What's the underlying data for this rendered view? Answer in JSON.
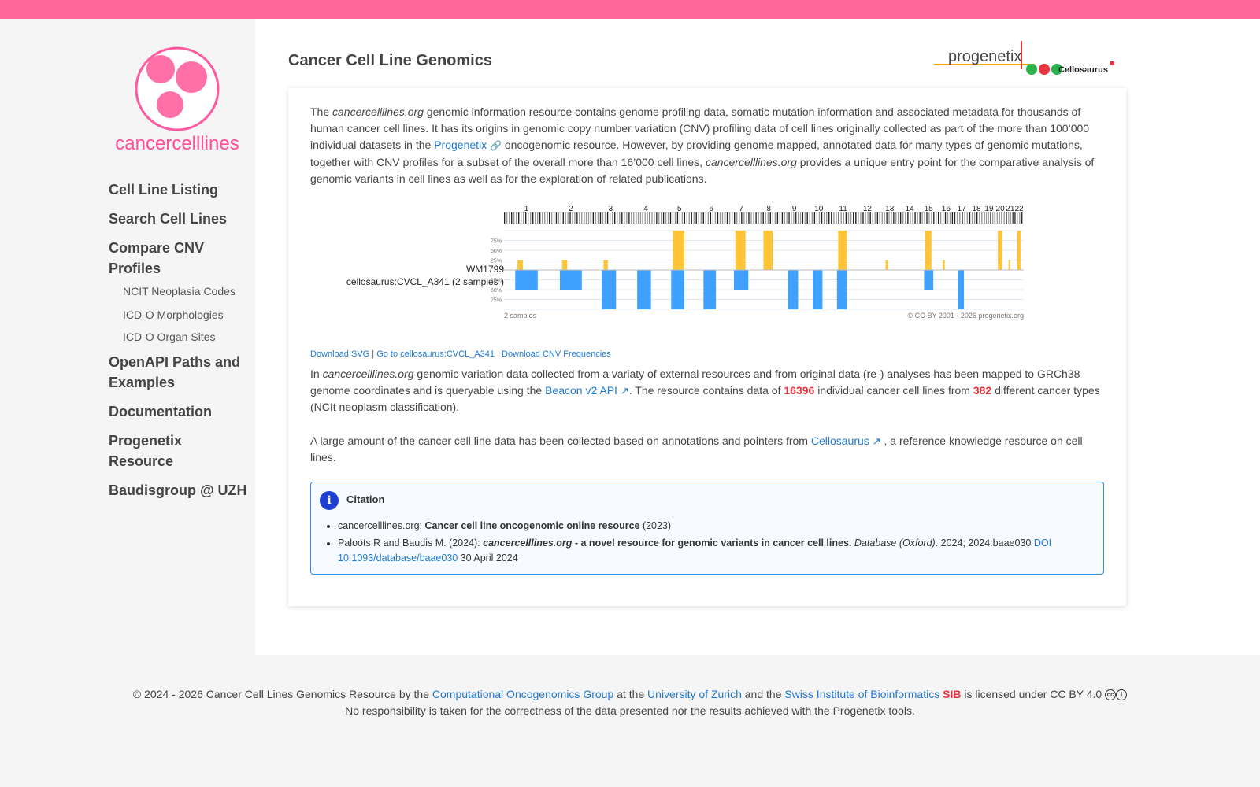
{
  "brand": {
    "logo_text": "cancercelllines",
    "partner_logos": [
      "progenetix",
      "Cellosaurus"
    ]
  },
  "nav": {
    "items": [
      {
        "label": "Cell Line Listing"
      },
      {
        "label": "Search Cell Lines"
      },
      {
        "label": "Compare CNV Profiles"
      },
      {
        "label": "NCIT Neoplasia Codes"
      },
      {
        "label": "ICD-O Morphologies"
      },
      {
        "label": "ICD-O Organ Sites"
      },
      {
        "label": "OpenAPI Paths and Examples"
      },
      {
        "label": "Documentation"
      },
      {
        "label": "Progenetix Resource"
      },
      {
        "label": "Baudisgroup @ UZH"
      }
    ]
  },
  "page": {
    "title": "Cancer Cell Line Genomics"
  },
  "intro": {
    "t1": "The ",
    "site": "cancercelllines.org",
    "t2": " genomic information resource contains genome profiling data, somatic mutation information and associated metadata for thousands of human cancer cell lines. It has its origins in genomic copy number variation (CNV) profiling data of cell lines originally collected as part of the more than 100’000 individual datasets in the ",
    "progenetix_link": "Progenetix",
    "t3": " oncogenomic resource. However, by providing genome mapped, annotated data for many types of genomic mutations, together with CNV profiles for a subset of the overall more than 16’000 cell lines, ",
    "t4": " provides a unique entry point for the comparative analysis of genomic variants in cell lines as well as for the exploration of related publications."
  },
  "plot": {
    "sample_label": "WM1799",
    "collection_label": "cellosaurus:CVCL_A341 (2 samples )",
    "chromosomes": [
      "1",
      "2",
      "3",
      "4",
      "5",
      "6",
      "7",
      "8",
      "9",
      "10",
      "11",
      "12",
      "13",
      "14",
      "15",
      "16",
      "17",
      "18",
      "19",
      "20",
      "21",
      "22"
    ],
    "y_ticks": [
      "75%",
      "50%",
      "25%"
    ],
    "footer_left": "2 samples",
    "footer_right": "© CC-BY 2001 - 2026 progenetix.org",
    "colors": {
      "gain": "#ffc435",
      "gain_dark": "#ff6a1a",
      "loss": "#3ea0ff",
      "loss_dark": "#0b33cc"
    }
  },
  "chart_data": {
    "type": "bar",
    "title": "",
    "categories": [
      "1",
      "2",
      "3",
      "4",
      "5",
      "6",
      "7",
      "8",
      "9",
      "10",
      "11",
      "12",
      "13",
      "14",
      "15",
      "16",
      "17",
      "18",
      "19",
      "20",
      "21",
      "22"
    ],
    "series": [
      {
        "name": "gain",
        "values": [
          0.25,
          0.25,
          0.25,
          0,
          1.0,
          0,
          1.0,
          1.0,
          0,
          0,
          1.0,
          0,
          0.25,
          0,
          1.0,
          0.25,
          0,
          0,
          0,
          1.0,
          0.25,
          1.0
        ]
      },
      {
        "name": "loss",
        "values": [
          0.5,
          0.5,
          1.0,
          1.0,
          1.0,
          1.0,
          0.5,
          0,
          1.0,
          1.0,
          1.0,
          0,
          0,
          0,
          0.5,
          0,
          1.0,
          0,
          0,
          0,
          0,
          0
        ]
      }
    ],
    "ylim": [
      0,
      1
    ]
  },
  "downloads": {
    "svg": "Download SVG",
    "sep": " | ",
    "goto": "Go to cellosaurus:CVCL_A341",
    "freq": "Download CNV Frequencies"
  },
  "stats": {
    "t1": "In ",
    "site": "cancercelllines.org",
    "t2": " genomic variation data collected from a variaty of external resources and from original data (re-) analyses has been mapped to GRCh38 genome coordinates and is queryable using the ",
    "beacon_link": "Beacon v2 API",
    "t3": ". The resource contains data of ",
    "cell_lines": "16396",
    "t4": " individual cancer cell lines from ",
    "cancer_types": "382",
    "t5": " different cancer types (NCIt neoplasm classification)."
  },
  "cellosaurus_para": {
    "t1": "A large amount of the cancer cell line data has been collected based on annotations and pointers from ",
    "link": "Cellosaurus",
    "t2": " , a reference knowledge resource on cell lines."
  },
  "citation": {
    "title": "Citation",
    "c1_prefix": "cancercelllines.org: ",
    "c1_title": "Cancer cell line oncogenomic online resource",
    "c1_year": " (2023)",
    "c2_authors": "Paloots R and Baudis M. (2024): ",
    "c2_site": "cancercelllines.org",
    "c2_title": " - a novel resource for genomic variants in cancer cell lines.",
    "c2_journal": "Database (Oxford)",
    "c2_ref": ". 2024; 2024:baae030 ",
    "c2_doi": "DOI 10.1093/database/baae030",
    "c2_date": " 30 April 2024"
  },
  "footer": {
    "t1": "© 2024 - 2026 Cancer Cell Lines Genomics Resource by the ",
    "group_link": "Computational Oncogenomics Group",
    "t2": " at the ",
    "uzh_link": "University of Zurich",
    "t3": " and the ",
    "sib_link": "Swiss Institute of Bioinformatics",
    "sib": "SIB",
    "t4": " is licensed under CC BY 4.0",
    "line2": "No responsibility is taken for the correctness of the data presented nor the results achieved with the Progenetix tools."
  }
}
